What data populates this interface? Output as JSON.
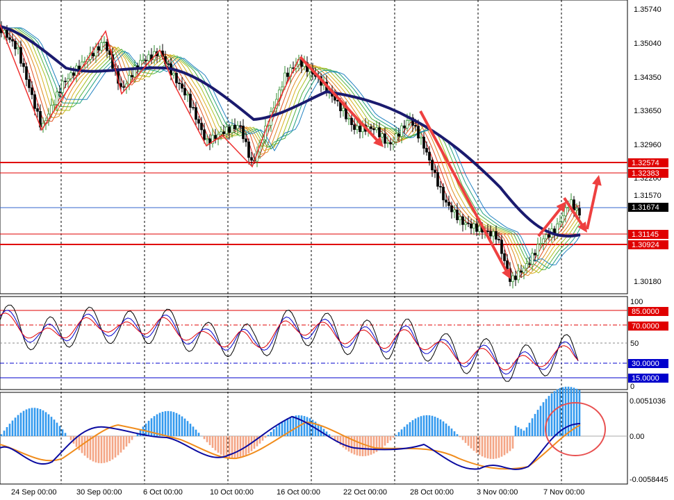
{
  "price_panel": {
    "axis_labels": [
      "1.35740",
      "1.35040",
      "1.34350",
      "1.33650",
      "1.32960",
      "1.32260",
      "1.31570",
      "1.30180"
    ],
    "levels": [
      {
        "label": "1.32574",
        "value": 1.32574,
        "color": "#e00000",
        "kind": "red"
      },
      {
        "label": "1.32383",
        "value": 1.32383,
        "color": "#e00000",
        "kind": "red"
      },
      {
        "label": "1.31145",
        "value": 1.31145,
        "color": "#e00000",
        "kind": "red"
      },
      {
        "label": "1.30924",
        "value": 1.30924,
        "color": "#e00000",
        "kind": "red"
      }
    ],
    "current_price": {
      "label": "1.31674",
      "value": 1.31674
    }
  },
  "oscillator_panel": {
    "axis_labels": [
      "100",
      "50",
      "0"
    ],
    "levels": [
      {
        "label": "85.0000",
        "value": 85,
        "color": "#e00000"
      },
      {
        "label": "70.0000",
        "value": 70,
        "color": "#e00000"
      },
      {
        "label": "30.0000",
        "value": 30,
        "color": "#0000cc"
      },
      {
        "label": "15.0000",
        "value": 15,
        "color": "#0000cc"
      }
    ]
  },
  "macd_panel": {
    "axis_labels": [
      "0.0051036",
      "0.00",
      "-0.0058445"
    ]
  },
  "time_axis": [
    "24 Sep 00:00",
    "30 Sep 00:00",
    "6 Oct 00:00",
    "10 Oct 00:00",
    "16 Oct 00:00",
    "22 Oct 00:00",
    "28 Oct 00:00",
    "3 Nov 00:00",
    "7 Nov 00:00"
  ],
  "colors": {
    "background": "#ffffff",
    "grid": "#000000",
    "level_red": "#e00000",
    "level_blue": "#0000cc",
    "bull_candle": "#2c8c2c",
    "ma_slow": "#1a1a6e",
    "arrow": "#ee4040",
    "hist_pos": "#3399ee",
    "hist_neg": "#f4a585",
    "macd_line": "#0a0aa0",
    "signal_line": "#f08c1c"
  }
}
